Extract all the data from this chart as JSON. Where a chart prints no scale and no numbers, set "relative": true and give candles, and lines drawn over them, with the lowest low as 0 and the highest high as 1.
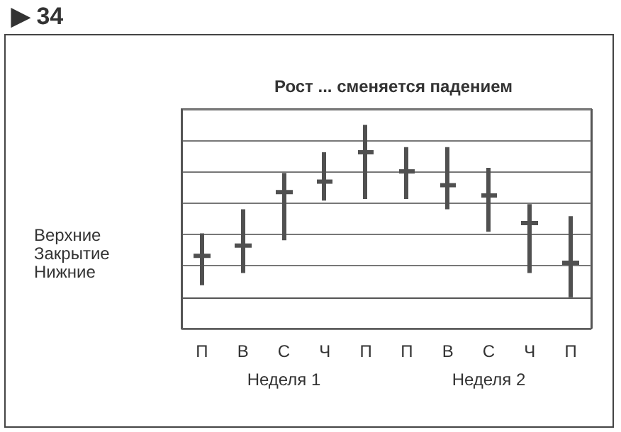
{
  "chart_data": {
    "type": "candlestick",
    "title": "Рост ... сменяется падением",
    "relative": true,
    "grid": "y",
    "color": "#505050",
    "categories": [
      "П",
      "В",
      "С",
      "Ч",
      "П",
      "П",
      "В",
      "С",
      "Ч",
      "П"
    ],
    "ohlc": [
      [
        0.24,
        0.37,
        0.07,
        0.24
      ],
      [
        0.3,
        0.51,
        0.14,
        0.3
      ],
      [
        0.61,
        0.72,
        0.33,
        0.61
      ],
      [
        0.67,
        0.84,
        0.56,
        0.67
      ],
      [
        0.84,
        1,
        0.57,
        0.84
      ],
      [
        0.73,
        0.87,
        0.57,
        0.73
      ],
      [
        0.65,
        0.87,
        0.51,
        0.65
      ],
      [
        0.59,
        0.75,
        0.38,
        0.59
      ],
      [
        0.43,
        0.54,
        0.14,
        0.43
      ],
      [
        0.2,
        0.47,
        0,
        0.2
      ]
    ],
    "annotations": [
      "▶ 34",
      "Верхние",
      "Закрытие",
      "Нижние",
      "Неделя 1",
      "Неделя 2"
    ]
  }
}
